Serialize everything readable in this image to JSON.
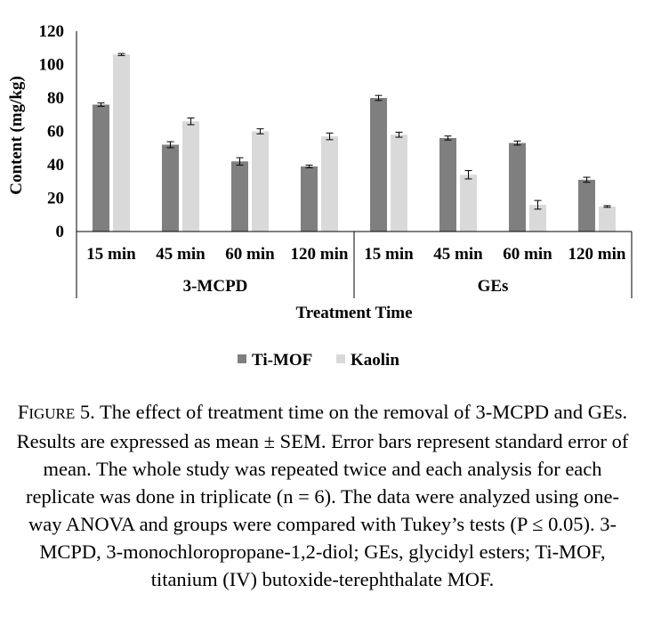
{
  "chart_data": {
    "type": "bar",
    "ylabel": "Content (mg/kg)",
    "xlabel": "Treatment Time",
    "ylim": [
      0,
      120
    ],
    "yticks": [
      "0",
      "20",
      "40",
      "60",
      "80",
      "100",
      "120"
    ],
    "groups": [
      {
        "name": "3-MCPD",
        "categories": [
          "15 min",
          "45 min",
          "60 min",
          "120 min"
        ]
      },
      {
        "name": "GEs",
        "categories": [
          "15 min",
          "45 min",
          "60 min",
          "120 min"
        ]
      }
    ],
    "series": [
      {
        "name": "Ti-MOF",
        "color": "#7f7f7f",
        "values": [
          76,
          52,
          42,
          39,
          80,
          56,
          53,
          31
        ],
        "errors": [
          1,
          1.8,
          2.2,
          0.8,
          1.5,
          1.2,
          1.2,
          1.5
        ]
      },
      {
        "name": "Kaolin",
        "color": "#d9d9d9",
        "values": [
          106,
          66,
          60,
          57,
          58,
          34,
          16,
          15
        ],
        "errors": [
          0.6,
          2,
          1.5,
          2,
          1.5,
          2.5,
          2.6,
          0.5
        ]
      }
    ],
    "legend_position": "bottom",
    "grid": false
  },
  "caption": {
    "label_first": "F",
    "label_rest": "IGURE",
    "number": "5.",
    "text": "The effect of treatment time on the removal of 3-MCPD and GEs. Results are expressed as mean ± SEM. Error bars represent standard error of mean. The whole study was repeated twice and each analysis for each replicate was done in triplicate (n = 6). The data were analyzed using one-way ANOVA and groups were compared with Tukey’s tests (P ≤ 0.05). 3-MCPD, 3-monochloropropane-1,2-diol; GEs, glycidyl esters; Ti-MOF, titanium (IV) butoxide-terephthalate MOF."
  }
}
